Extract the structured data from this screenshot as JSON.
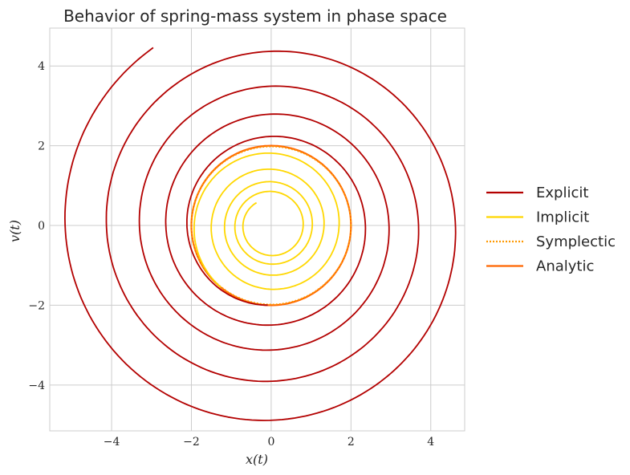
{
  "chart_data": {
    "type": "line",
    "title": "Behavior of spring-mass system in phase space",
    "xlabel": "x(t)",
    "ylabel": "v(t)",
    "xlim": [
      -5.55,
      4.85
    ],
    "ylim": [
      -5.15,
      4.95
    ],
    "xticks": [
      -4,
      -2,
      0,
      2,
      4
    ],
    "yticks": [
      -4,
      -2,
      0,
      2,
      4
    ],
    "xtick_labels": [
      "−4",
      "−2",
      "0",
      "2",
      "4"
    ],
    "ytick_labels": [
      "−4",
      "−2",
      "0",
      "2",
      "4"
    ],
    "grid": true,
    "legend_placement": "right, outside plot",
    "series": [
      {
        "name": "Explicit",
        "color": "#b30000",
        "style": "solid",
        "turns": 4.4,
        "start_radius": 2.0,
        "end_radius": 5.35,
        "end_point": [
          -2.95,
          4.45
        ],
        "note_type": "spiral outward"
      },
      {
        "name": "Implicit",
        "color": "#ffd700",
        "style": "solid",
        "turns": 4.3,
        "start_radius": 2.0,
        "end_radius": 0.68,
        "end_point": [
          -0.4,
          0.62
        ],
        "note_type": "spiral inward"
      },
      {
        "name": "Symplectic",
        "color": "#ff9900",
        "style": "dotted",
        "radius_x": 2.0,
        "radius_y": 1.98
      },
      {
        "name": "Analytic",
        "color": "#ff6600",
        "style": "solid",
        "radius_x": 2.0,
        "radius_y": 2.0
      }
    ]
  }
}
